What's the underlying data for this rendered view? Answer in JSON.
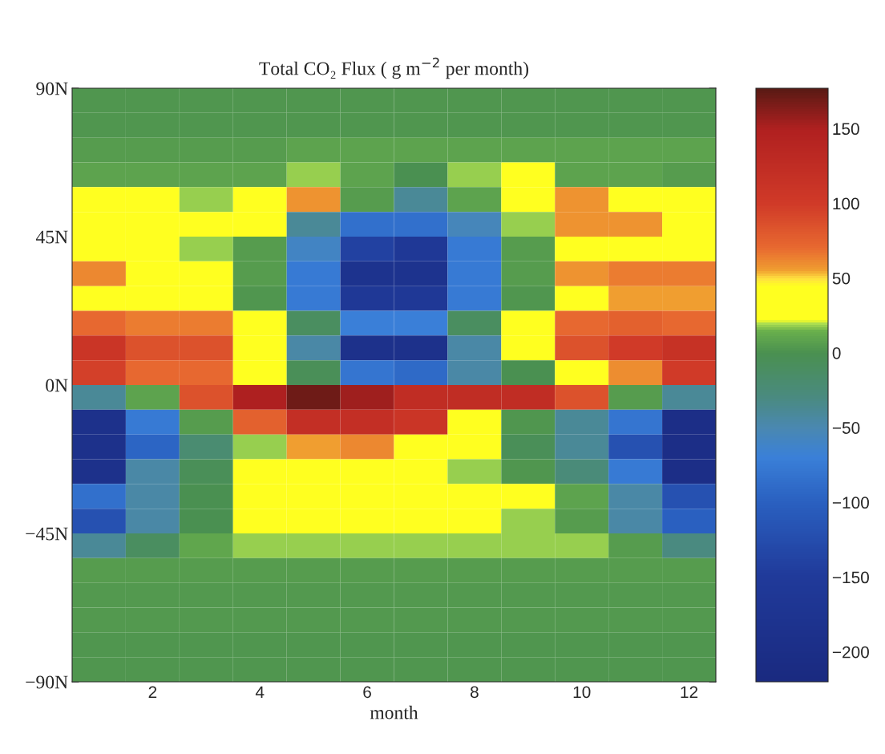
{
  "chart_data": {
    "type": "heatmap",
    "title": "Total CO₂ Flux ( g m$^{−2}$ per month)",
    "xlabel": "month",
    "x": [
      1,
      2,
      3,
      4,
      5,
      6,
      7,
      8,
      9,
      10,
      11,
      12
    ],
    "xlim": [
      0.5,
      12.5
    ],
    "xticks": [
      2,
      4,
      6,
      8,
      10,
      12
    ],
    "ylim": [
      -90,
      90
    ],
    "yticks": [
      {
        "value": -90,
        "label": "−90N"
      },
      {
        "value": -45,
        "label": "−45N"
      },
      {
        "value": 0,
        "label": "0N"
      },
      {
        "value": 45,
        "label": "45N"
      },
      {
        "value": 90,
        "label": "90N"
      }
    ],
    "cells": [
      [
        3,
        3,
        3,
        3,
        3,
        3,
        3,
        3,
        3,
        3,
        3,
        3
      ],
      [
        3,
        3,
        3,
        3,
        3,
        3,
        3,
        3,
        3,
        3,
        3,
        3
      ],
      [
        5,
        5,
        5,
        5,
        8,
        8,
        8,
        8,
        8,
        8,
        8,
        8
      ],
      [
        8,
        8,
        8,
        8,
        18,
        8,
        0,
        18,
        35,
        8,
        8,
        5
      ],
      [
        35,
        35,
        18,
        35,
        58,
        5,
        -40,
        8,
        35,
        58,
        40,
        40
      ],
      [
        35,
        35,
        35,
        35,
        -40,
        -85,
        -85,
        -55,
        18,
        58,
        58,
        40
      ],
      [
        35,
        35,
        18,
        5,
        -60,
        -140,
        -160,
        -75,
        5,
        40,
        40,
        40
      ],
      [
        62,
        35,
        35,
        5,
        -75,
        -180,
        -180,
        -75,
        5,
        58,
        65,
        65
      ],
      [
        40,
        35,
        35,
        3,
        -75,
        -160,
        -160,
        -75,
        3,
        40,
        55,
        55
      ],
      [
        70,
        65,
        65,
        35,
        -10,
        -70,
        -70,
        -10,
        35,
        70,
        75,
        70
      ],
      [
        110,
        85,
        85,
        35,
        -45,
        -190,
        -190,
        -45,
        35,
        85,
        100,
        115
      ],
      [
        95,
        70,
        70,
        35,
        -5,
        -80,
        -90,
        -45,
        0,
        40,
        60,
        100
      ],
      [
        -40,
        8,
        85,
        150,
        170,
        155,
        125,
        125,
        125,
        85,
        5,
        -40
      ],
      [
        -190,
        -75,
        5,
        75,
        120,
        120,
        110,
        35,
        3,
        -40,
        -80,
        -200
      ],
      [
        -190,
        -95,
        -20,
        18,
        55,
        62,
        35,
        35,
        -5,
        -40,
        -120,
        -200
      ],
      [
        -190,
        -45,
        -5,
        35,
        35,
        35,
        35,
        18,
        3,
        -25,
        -75,
        -200
      ],
      [
        -85,
        -45,
        0,
        35,
        35,
        35,
        35,
        35,
        35,
        8,
        -45,
        -120
      ],
      [
        -120,
        -45,
        0,
        35,
        35,
        35,
        35,
        35,
        18,
        5,
        -45,
        -100
      ],
      [
        -40,
        -10,
        10,
        18,
        18,
        18,
        18,
        18,
        18,
        18,
        5,
        -30
      ],
      [
        5,
        5,
        5,
        5,
        5,
        5,
        5,
        5,
        5,
        5,
        5,
        5
      ],
      [
        4,
        4,
        4,
        4,
        4,
        4,
        4,
        4,
        4,
        4,
        4,
        4
      ],
      [
        4,
        4,
        4,
        4,
        4,
        4,
        4,
        4,
        4,
        4,
        4,
        4
      ],
      [
        3,
        3,
        3,
        3,
        3,
        3,
        3,
        3,
        3,
        3,
        3,
        3
      ],
      [
        3,
        3,
        3,
        3,
        3,
        3,
        3,
        3,
        3,
        3,
        3,
        3
      ]
    ],
    "clim": [
      -220,
      177
    ],
    "cticks": [
      {
        "value": -200,
        "label": "−200"
      },
      {
        "value": -150,
        "label": "−150"
      },
      {
        "value": -100,
        "label": "−100"
      },
      {
        "value": -50,
        "label": "−50"
      },
      0,
      50,
      100,
      150
    ],
    "grid": false
  }
}
